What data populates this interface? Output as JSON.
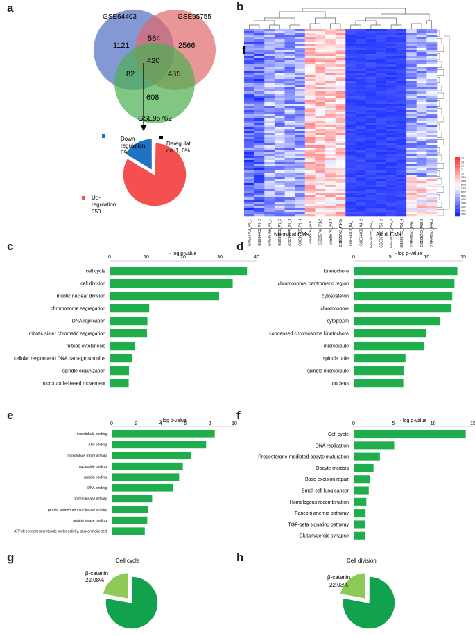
{
  "panel_letters": {
    "a": "a",
    "b": "b",
    "c": "c",
    "d": "d",
    "e": "e",
    "f": "f",
    "g": "g",
    "h": "h"
  },
  "colors": {
    "bar": "#1fae4b",
    "venn_blue": "#5b76c4",
    "venn_red": "#e06a6a",
    "venn_green": "#4caf50",
    "pie_up": "#f45050",
    "pie_down": "#1f72c4",
    "pie_dereg": "#000000",
    "pie_dark": "#12a14c",
    "pie_light": "#8cca55"
  },
  "panel_a": {
    "venn": {
      "set_labels": [
        "GSE64403",
        "GSE95755",
        "GSE95762"
      ],
      "regions": {
        "blue_only": "1121",
        "blue_red": "564",
        "red_only": "2566",
        "blue_green": "82",
        "all": "420",
        "red_green": "435",
        "green_only": "608"
      }
    },
    "pie_legend": {
      "down": [
        "Down-",
        "regulation",
        "69..."
      ],
      "dereg": [
        "Deregulati",
        "on, 1, 0%"
      ],
      "up": [
        "Up-",
        "regulation",
        "350..."
      ]
    }
  },
  "panel_b": {
    "sample_labels": [
      "GSE64403_P0_1",
      "GSE64403_P0_2",
      "GSE95755_P1_1",
      "GSE95755_P1_2",
      "GSE95755_P1_3",
      "GSE95755_P1_4",
      "GSE95762_P1-1",
      "GSE95762_P1-2",
      "GSE95762_P1-3",
      "GSE95762_P1-2b",
      "GSE64403_A4_1",
      "GSE64403_A4_2",
      "GSE95755_P56_1",
      "GSE95755_P56_2",
      "GSE95755_P56_3",
      "GSE95755_P56_4",
      "GSE95762_P56-1",
      "GSE95762_P56-2",
      "GSE95762_P56-3"
    ],
    "group_labels": [
      "Neonatal CMs",
      "Adult CMs"
    ],
    "overlay_letter": "f",
    "color_scale": [
      "14",
      "13",
      "12",
      "11",
      "10",
      "9.18",
      "9.09",
      "8.08",
      "7.08",
      "6.07",
      "5.06",
      "4.05",
      "3.03",
      "2.02",
      "1.01",
      "0.00"
    ]
  },
  "chart_data": [
    {
      "type": "bar",
      "panel": "c",
      "orientation": "horizontal",
      "title": "- log p-value",
      "xlim": [
        0,
        40
      ],
      "ticks": [
        "0",
        "10",
        "20",
        "30",
        "40"
      ],
      "categories": [
        "cell cycle",
        "cell division",
        "mitotic nuclear division",
        "chromosome segregation",
        "DNA replication",
        "mitotic sister chromatid segregation",
        "mitotic cytokinesis",
        "cellular response to DNA damage stimulus",
        "spindle organization",
        "microtubule-based movement"
      ],
      "values": [
        37.4,
        33.5,
        29.8,
        10.8,
        10.3,
        10.2,
        6.9,
        6.2,
        5.3,
        5.2
      ]
    },
    {
      "type": "bar",
      "panel": "d",
      "orientation": "horizontal",
      "title": "- log p-value",
      "xlim": [
        0,
        15
      ],
      "ticks": [
        "0",
        "5",
        "10",
        "15"
      ],
      "categories": [
        "kinetochore",
        "chromosome, centromeric region",
        "cytoskeleton",
        "chromosome",
        "cytoplasm",
        "condensed chromosome kinetochore",
        "microtubule",
        "spindle pole",
        "spindle microtubule",
        "nucleus"
      ],
      "values": [
        14.2,
        13.8,
        13.5,
        13.4,
        11.8,
        9.9,
        9.6,
        7.1,
        6.9,
        6.8
      ]
    },
    {
      "type": "bar",
      "panel": "e",
      "orientation": "horizontal",
      "title": "- log p-value",
      "xlim": [
        0,
        10
      ],
      "ticks": [
        "0",
        "2",
        "4",
        "6",
        "8",
        "10"
      ],
      "categories": [
        "microtubule binding",
        "ATP binding",
        "microtubule motor activity",
        "nucleotide binding",
        "protein binding",
        "DNA binding",
        "protein kinase activity",
        "protein serine/threonine kinase activity",
        "protein kinase binding",
        "ATP-dependent microtubule motor activity, plus-end-directed"
      ],
      "values": [
        8.4,
        7.7,
        6.5,
        5.8,
        5.5,
        5.0,
        3.3,
        3.0,
        2.9,
        2.7
      ]
    },
    {
      "type": "bar",
      "panel": "f",
      "orientation": "horizontal",
      "title": "- log p-value",
      "xlim": [
        0,
        15
      ],
      "ticks": [
        "0",
        "5",
        "10",
        "15"
      ],
      "categories": [
        "Cell cycle",
        "DNA replication",
        "Progesterone-mediated oocyte maturation",
        "Oocyte meiosis",
        "Base excision repair",
        "Small cell lung cancer",
        "Homologous recombination",
        "Fanconi anemia pathway",
        "TGF-beta signaling pathway",
        "Glutamatergic synapse"
      ],
      "values": [
        14.1,
        5.1,
        3.3,
        2.5,
        2.1,
        1.9,
        1.6,
        1.5,
        1.4,
        1.4
      ]
    },
    {
      "type": "pie",
      "panel": "a",
      "labels": [
        "Up-regulation",
        "Down-regulation",
        "Deregulation"
      ],
      "values": [
        350,
        69,
        1
      ]
    },
    {
      "type": "pie",
      "panel": "g",
      "title": "Cell cycle",
      "labels": [
        "β-catenin",
        "other"
      ],
      "values": [
        22.08,
        77.92
      ],
      "label_text": [
        "β-catenin",
        "22.08%"
      ]
    },
    {
      "type": "pie",
      "panel": "h",
      "title": "Cell division",
      "labels": [
        "β-catenin",
        "other"
      ],
      "values": [
        22.03,
        77.97
      ],
      "label_text": [
        "β-catenin",
        "22.03%"
      ]
    }
  ]
}
